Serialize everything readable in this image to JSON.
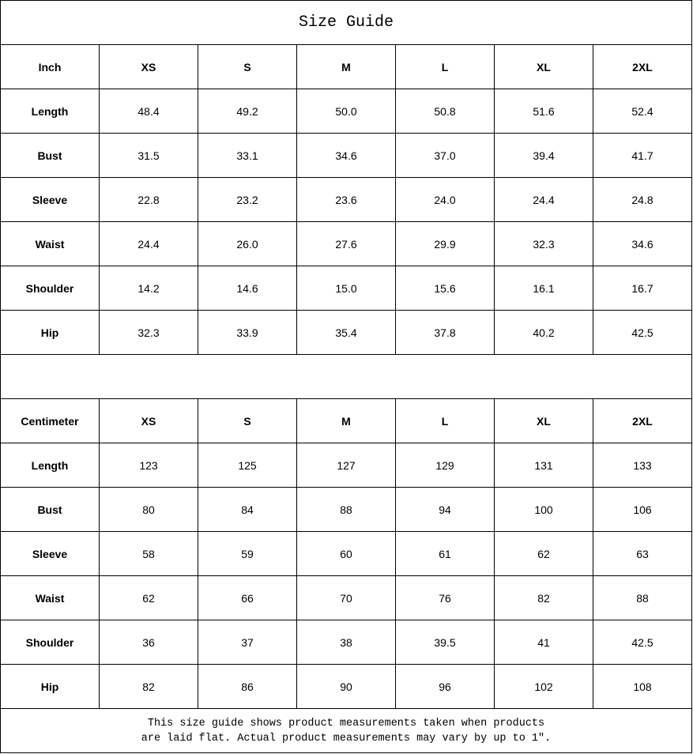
{
  "title": "Size Guide",
  "sizes": [
    "XS",
    "S",
    "M",
    "L",
    "XL",
    "2XL"
  ],
  "tables": [
    {
      "unit": "Inch",
      "rows": [
        {
          "label": "Length",
          "values": [
            "48.4",
            "49.2",
            "50.0",
            "50.8",
            "51.6",
            "52.4"
          ]
        },
        {
          "label": "Bust",
          "values": [
            "31.5",
            "33.1",
            "34.6",
            "37.0",
            "39.4",
            "41.7"
          ]
        },
        {
          "label": "Sleeve",
          "values": [
            "22.8",
            "23.2",
            "23.6",
            "24.0",
            "24.4",
            "24.8"
          ]
        },
        {
          "label": "Waist",
          "values": [
            "24.4",
            "26.0",
            "27.6",
            "29.9",
            "32.3",
            "34.6"
          ]
        },
        {
          "label": "Shoulder",
          "values": [
            "14.2",
            "14.6",
            "15.0",
            "15.6",
            "16.1",
            "16.7"
          ]
        },
        {
          "label": "Hip",
          "values": [
            "32.3",
            "33.9",
            "35.4",
            "37.8",
            "40.2",
            "42.5"
          ]
        }
      ]
    },
    {
      "unit": "Centimeter",
      "rows": [
        {
          "label": "Length",
          "values": [
            "123",
            "125",
            "127",
            "129",
            "131",
            "133"
          ]
        },
        {
          "label": "Bust",
          "values": [
            "80",
            "84",
            "88",
            "94",
            "100",
            "106"
          ]
        },
        {
          "label": "Sleeve",
          "values": [
            "58",
            "59",
            "60",
            "61",
            "62",
            "63"
          ]
        },
        {
          "label": "Waist",
          "values": [
            "62",
            "66",
            "70",
            "76",
            "82",
            "88"
          ]
        },
        {
          "label": "Shoulder",
          "values": [
            "36",
            "37",
            "38",
            "39.5",
            "41",
            "42.5"
          ]
        },
        {
          "label": "Hip",
          "values": [
            "82",
            "86",
            "90",
            "96",
            "102",
            "108"
          ]
        }
      ]
    }
  ],
  "note": {
    "line1": "This size guide shows product measurements taken when products",
    "line2": "are laid flat. Actual product measurements may vary by up to 1″."
  }
}
